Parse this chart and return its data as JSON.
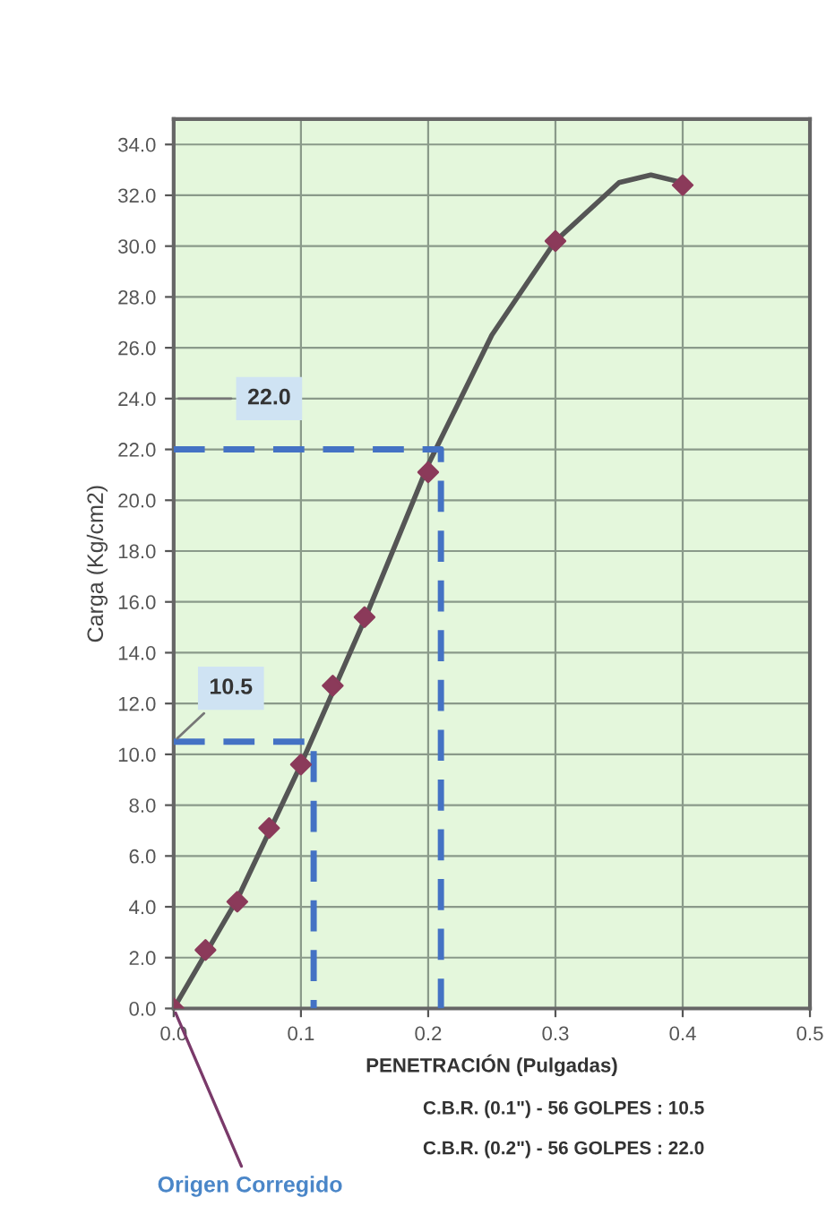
{
  "chart_data": {
    "type": "line",
    "xlabel": "PENETRACIÓN (Pulgadas)",
    "ylabel": "Carga (Kg/cm2)",
    "xlim": [
      0,
      0.5
    ],
    "ylim": [
      0,
      35
    ],
    "xticks": [
      {
        "value": 0,
        "label": "0.0"
      },
      0.1,
      0.2,
      0.3,
      0.4,
      0.5
    ],
    "yticks": [
      {
        "value": 0,
        "label": "0.0"
      },
      {
        "value": 2,
        "label": "2.0"
      },
      {
        "value": 4,
        "label": "4.0"
      },
      {
        "value": 6,
        "label": "6.0"
      },
      {
        "value": 8,
        "label": "8.0"
      },
      {
        "value": 10,
        "label": "10.0"
      },
      {
        "value": 12,
        "label": "12.0"
      },
      {
        "value": 14,
        "label": "14.0"
      },
      {
        "value": 16,
        "label": "16.0"
      },
      {
        "value": 18,
        "label": "18.0"
      },
      {
        "value": 20,
        "label": "20.0"
      },
      {
        "value": 22,
        "label": "22.0"
      },
      {
        "value": 24,
        "label": "24.0"
      },
      {
        "value": 26,
        "label": "26.0"
      },
      {
        "value": 28,
        "label": "28.0"
      },
      {
        "value": 30,
        "label": "30.0"
      },
      {
        "value": 32,
        "label": "32.0"
      },
      {
        "value": 34,
        "label": "34.0"
      }
    ],
    "grid": true,
    "series": [
      {
        "color": "#555555",
        "marker": "none",
        "line_style": "solid",
        "x": [
          0,
          0.05,
          0.1,
          0.15,
          0.2,
          0.25,
          0.3,
          0.35,
          0.375,
          0.4
        ],
        "values": [
          0,
          4.3,
          9.6,
          15.3,
          21.4,
          26.5,
          30.2,
          32.5,
          32.8,
          32.5
        ]
      },
      {
        "type": "scatter",
        "color": "#8b3a5a",
        "marker": "diamond",
        "x": [
          0,
          0.025,
          0.05,
          0.075,
          0.1,
          0.125,
          0.15,
          0.2,
          0.3,
          0.4
        ],
        "values": [
          0,
          2.3,
          4.2,
          7.1,
          9.6,
          12.7,
          15.4,
          21.1,
          30.2,
          32.4
        ]
      },
      {
        "type": "line",
        "color": "#4472c4",
        "marker": "none",
        "line_style": "dashed",
        "x": [
          0,
          0.21,
          0.21
        ],
        "values": [
          22,
          22,
          0
        ]
      },
      {
        "type": "line",
        "color": "#4472c4",
        "marker": "none",
        "line_style": "dashed",
        "x": [
          0,
          0.11,
          0.11
        ],
        "values": [
          10.5,
          10.5,
          0
        ]
      }
    ],
    "annotations": [
      "22.0",
      "10.5",
      "Origen Corregido",
      "C.B.R. (0.1\") - 56 GOLPES : 10.5",
      "C.B.R. (0.2\") - 56 GOLPES : 22.0"
    ]
  }
}
